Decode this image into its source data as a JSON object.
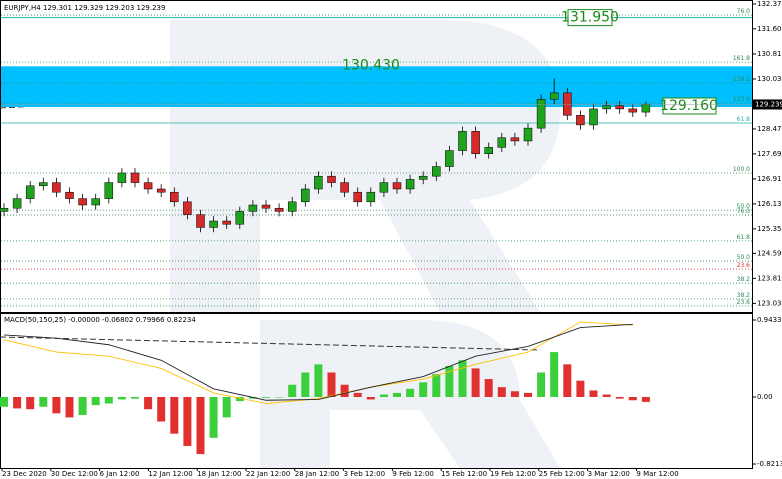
{
  "chart_data": {
    "type": "candlestick",
    "title": "EURJPY,H4  129.301 129.329 129.203 129.239",
    "x_labels": [
      "23 Dec 2020",
      "30 Dec 12:00",
      "6 Jan 12:00",
      "12 Jan 12:00",
      "18 Jan 12:00",
      "22 Jan 12:00",
      "28 Jan 12:00",
      "3 Feb 12:00",
      "9 Feb 12:00",
      "15 Feb 12:00",
      "19 Feb 12:00",
      "25 Feb 12:00",
      "3 Mar 12:00",
      "9 Mar 12:00"
    ],
    "open": [
      125.9,
      126.0,
      126.3,
      126.7,
      126.8,
      126.5,
      126.3,
      126.1,
      126.3,
      126.8,
      127.1,
      126.8,
      126.6,
      126.5,
      126.2,
      125.8,
      125.4,
      125.6,
      125.5,
      125.9,
      126.1,
      126.0,
      125.9,
      126.2,
      126.6,
      127.0,
      126.8,
      126.5,
      126.2,
      126.5,
      126.8,
      126.6,
      126.9,
      127.0,
      127.3,
      127.8,
      128.4,
      127.7,
      127.9,
      128.2,
      128.1,
      128.5,
      129.4,
      129.6,
      128.9,
      128.6,
      129.1,
      129.2,
      129.1,
      129.0
    ],
    "high": [
      126.15,
      126.45,
      126.85,
      126.95,
      126.95,
      126.65,
      126.45,
      126.45,
      126.95,
      127.25,
      127.25,
      126.95,
      126.75,
      126.65,
      126.35,
      125.95,
      125.75,
      125.75,
      126.05,
      126.25,
      126.25,
      126.15,
      126.35,
      126.75,
      127.15,
      127.15,
      126.95,
      126.65,
      126.65,
      126.95,
      126.95,
      127.05,
      127.15,
      127.45,
      127.95,
      128.55,
      128.55,
      128.05,
      128.35,
      128.35,
      128.65,
      129.55,
      130.05,
      129.75,
      129.05,
      129.25,
      129.35,
      129.35,
      129.25,
      129.33
    ],
    "low": [
      125.75,
      125.85,
      126.15,
      126.55,
      126.35,
      126.15,
      125.95,
      125.95,
      126.15,
      126.65,
      126.65,
      126.45,
      126.35,
      126.05,
      125.65,
      125.25,
      125.25,
      125.35,
      125.35,
      125.75,
      125.85,
      125.75,
      125.75,
      126.05,
      126.45,
      126.65,
      126.35,
      126.05,
      126.05,
      126.35,
      126.45,
      126.45,
      126.75,
      126.85,
      127.15,
      127.65,
      127.55,
      127.55,
      127.75,
      127.95,
      127.95,
      128.35,
      129.25,
      128.75,
      128.45,
      128.45,
      128.95,
      128.95,
      128.85,
      128.85
    ],
    "close": [
      126.0,
      126.3,
      126.7,
      126.8,
      126.5,
      126.3,
      126.1,
      126.3,
      126.8,
      127.1,
      126.8,
      126.6,
      126.5,
      126.2,
      125.8,
      125.4,
      125.6,
      125.5,
      125.9,
      126.1,
      126.0,
      125.9,
      126.2,
      126.6,
      127.0,
      126.8,
      126.5,
      126.2,
      126.5,
      126.8,
      126.6,
      126.9,
      127.0,
      127.3,
      127.8,
      128.4,
      127.7,
      127.9,
      128.2,
      128.1,
      128.5,
      129.4,
      129.6,
      128.9,
      128.6,
      129.1,
      129.2,
      129.1,
      129.0,
      129.239
    ],
    "ylim": [
      122.76,
      132.5
    ],
    "yticks": [
      132.375,
      {
        "value": 131.6,
        "label": "131.600"
      },
      130.815,
      130.035,
      128.475,
      127.695,
      126.915,
      126.135,
      125.355,
      {
        "value": 124.59,
        "label": "124.590"
      },
      {
        "value": 123.81,
        "label": "123.810"
      },
      {
        "value": 123.03,
        "label": "123.030"
      }
    ],
    "current_price": 129.239,
    "zone": {
      "values": [
        130.43,
        129.16
      ],
      "value_labels": [
        "130.430",
        "129.160"
      ],
      "color": "#00bfff"
    },
    "target": {
      "value": 131.95,
      "value_label": "131.950"
    },
    "levels": [
      {
        "label": "76.0",
        "value": 132.03,
        "color": "#2e8b57"
      },
      {
        "label": "161.8",
        "value": 130.56,
        "color": "#2e8b57"
      },
      {
        "label": "138.2",
        "value": 129.91,
        "color": "#2e8b57"
      },
      {
        "label": "123.6",
        "value": 129.28,
        "color": "#2e8b57"
      },
      {
        "label": "61.8",
        "value": 128.66,
        "color": "#20b2aa"
      },
      {
        "label": "100.0",
        "value": 127.1,
        "color": "#2e8b57"
      },
      {
        "label": "50.0",
        "value": 125.94,
        "color": "#2e8b57"
      },
      {
        "label": "76.0",
        "value": 125.79,
        "color": "#2e8b57"
      },
      {
        "label": "61.8",
        "value": 124.98,
        "color": "#2e8b57"
      },
      {
        "label": "50.0",
        "value": 124.35,
        "color": "#2e8b57"
      },
      {
        "label": "23.6",
        "value": 124.1,
        "color": "#e03030"
      },
      {
        "label": "38.2",
        "value": 123.66,
        "color": "#2e8b57"
      },
      {
        "label": "38.2",
        "value": 123.17,
        "color": "#2e8b57"
      },
      {
        "label": "23.6",
        "value": 122.95,
        "color": "#2e8b57"
      }
    ],
    "macd": {
      "title": "MACD(50,150,25) -0.00000 -0.06802 0.79966 0.82234",
      "histogram": [
        -0.12,
        -0.14,
        -0.15,
        -0.12,
        -0.2,
        -0.25,
        -0.22,
        -0.1,
        -0.08,
        -0.03,
        -0.02,
        -0.15,
        -0.3,
        -0.45,
        -0.6,
        -0.7,
        -0.5,
        -0.25,
        -0.05,
        -0.02,
        -0.01,
        0.0,
        0.15,
        0.3,
        0.4,
        0.3,
        0.15,
        0.05,
        -0.03,
        0.03,
        0.05,
        0.1,
        0.18,
        0.28,
        0.38,
        0.45,
        0.35,
        0.22,
        0.12,
        0.07,
        0.05,
        0.3,
        0.55,
        0.4,
        0.2,
        0.08,
        0.03,
        -0.02,
        -0.04,
        -0.06
      ],
      "main": [
        0.76,
        0.72,
        0.64,
        0.45,
        0.1,
        -0.04,
        -0.03,
        0.12,
        0.25,
        0.5,
        0.62,
        0.85,
        0.89
      ],
      "signal": [
        0.7,
        0.55,
        0.5,
        0.35,
        0.05,
        -0.08,
        -0.02,
        0.12,
        0.22,
        0.4,
        0.55,
        0.92,
        0.88
      ],
      "ylim": [
        -0.87,
        1.029
      ],
      "yticks": [
        0.94338,
        {
          "value": 0,
          "label": "0.00"
        },
        -0.82134
      ]
    }
  }
}
